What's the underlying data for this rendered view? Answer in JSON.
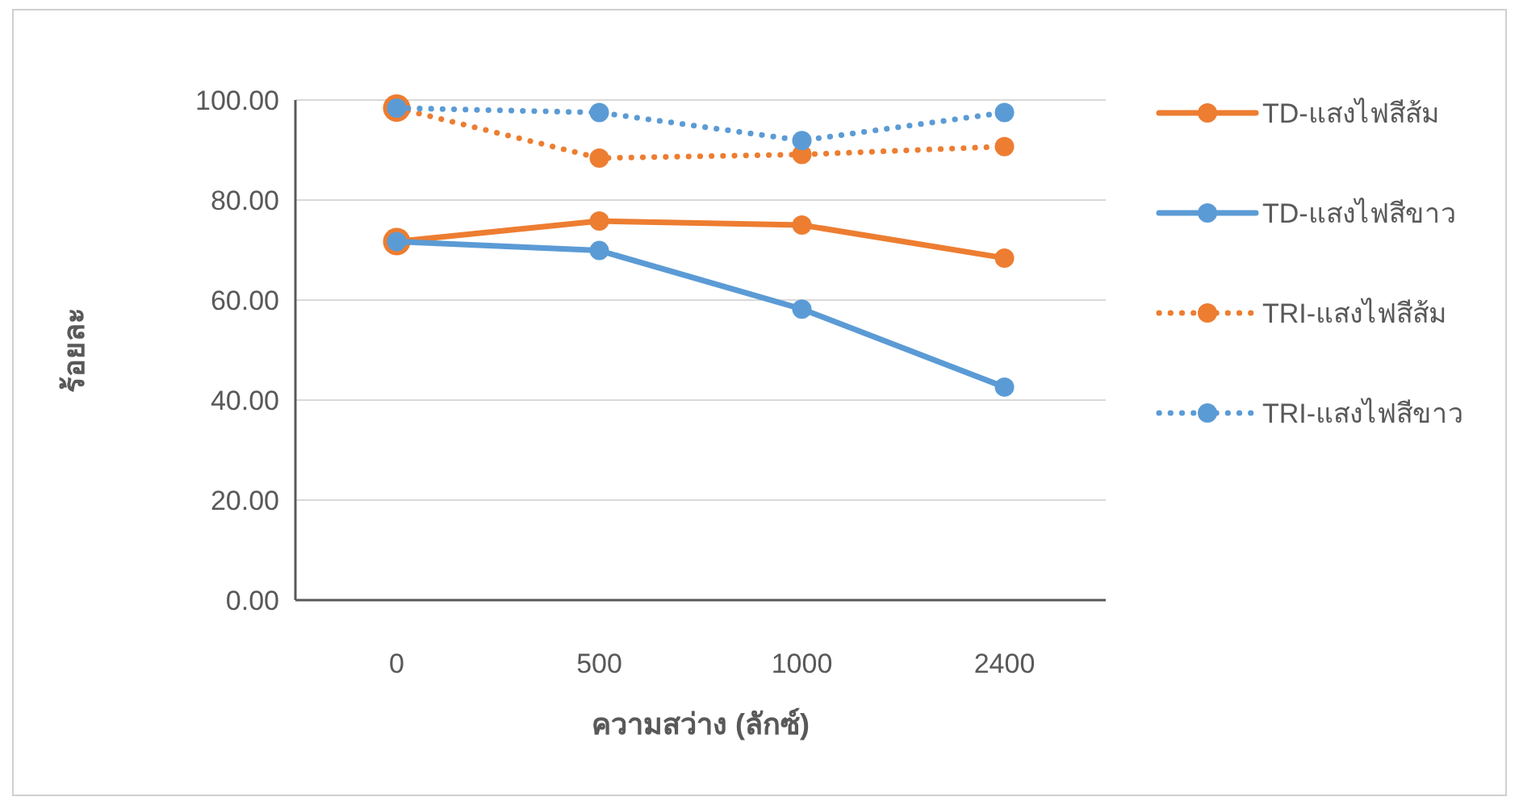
{
  "chart_data": {
    "type": "line",
    "xlabel": "ความสว่าง (ลักซ์)",
    "ylabel": "ร้อยละ",
    "categories": [
      "0",
      "500",
      "1000",
      "2400"
    ],
    "ylim": [
      0,
      100
    ],
    "yticks": [
      {
        "value": 0,
        "label": "0.00"
      },
      {
        "value": 20,
        "label": "20.00"
      },
      {
        "value": 40,
        "label": "40.00"
      },
      {
        "value": 60,
        "label": "60.00"
      },
      {
        "value": 80,
        "label": "80.00"
      },
      {
        "value": 100,
        "label": "100.00"
      }
    ],
    "grid": "y",
    "legend": "right",
    "marker": "circle",
    "series": [
      {
        "name": "TD-แสงไฟสีส้ม",
        "color": "#ed7d31",
        "line_style": "solid",
        "values": [
          71.7,
          75.8,
          75.0,
          68.4
        ]
      },
      {
        "name": "TD-แสงไฟสีขาว",
        "color": "#5b9bd5",
        "line_style": "solid",
        "values": [
          71.7,
          69.9,
          58.2,
          42.6
        ]
      },
      {
        "name": "TRI-แสงไฟสีส้ม",
        "color": "#ed7d31",
        "line_style": "dotted",
        "values": [
          98.4,
          88.4,
          89.1,
          90.7
        ]
      },
      {
        "name": "TRI-แสงไฟสีขาว",
        "color": "#5b9bd5",
        "line_style": "dotted",
        "values": [
          98.4,
          97.5,
          91.9,
          97.5
        ]
      }
    ]
  }
}
